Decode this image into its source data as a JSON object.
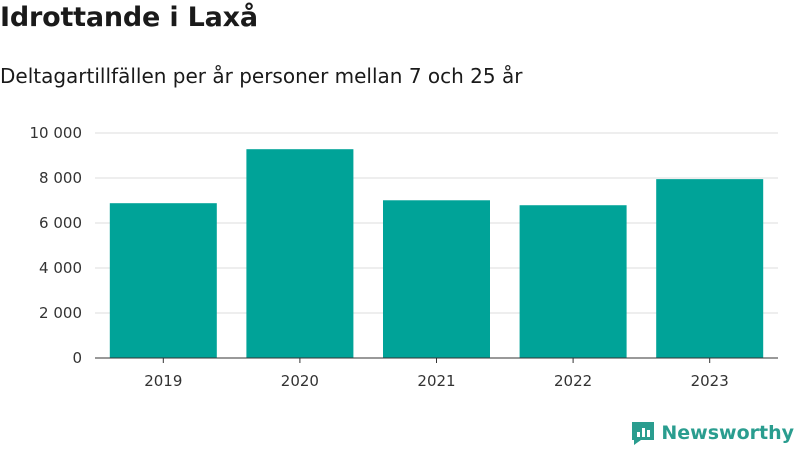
{
  "brand": {
    "name": "Newsworthy",
    "logo_icon": "newsworthy-logo-icon",
    "color": "#2a9d8f"
  },
  "chart_data": {
    "type": "bar",
    "title": "Idrottande i Laxå",
    "subtitle": "Deltagartillfällen per år personer mellan 7 och 25 år",
    "categories": [
      "2019",
      "2020",
      "2021",
      "2022",
      "2023"
    ],
    "values": [
      6880,
      9280,
      7010,
      6790,
      7950
    ],
    "ylim": [
      0,
      10000
    ],
    "yticks": [
      0,
      2000,
      4000,
      6000,
      8000,
      10000
    ],
    "ytick_labels": [
      "0",
      "2 000",
      "4 000",
      "6 000",
      "8 000",
      "10 000"
    ],
    "bar_color": "#00a398",
    "grid": true,
    "legend": "none"
  }
}
